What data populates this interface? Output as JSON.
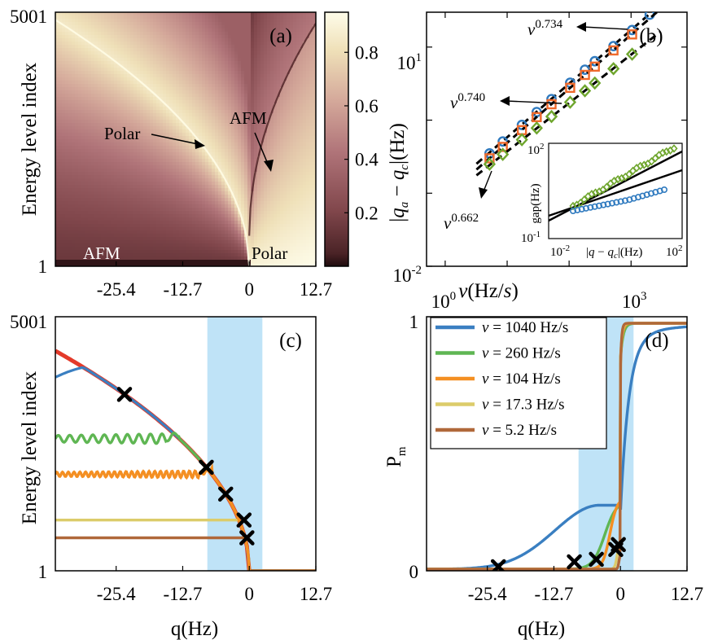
{
  "chart_data": [
    {
      "panel": "a",
      "type": "heatmap",
      "panel_label": "(a)",
      "ylabel": "Energy level index",
      "xlabel": "",
      "x_ticks": [
        "-25.4",
        "-12.7",
        "0",
        "12.7"
      ],
      "x_tick_values": [
        -25.4,
        -12.7,
        0,
        12.7
      ],
      "xlim": [
        -37,
        12.7
      ],
      "y_ticks": [
        "5001",
        "1"
      ],
      "ylim": [
        1,
        5001
      ],
      "colorbar_ticks": [
        "0.8",
        "0.6",
        "0.4",
        "0.2"
      ],
      "colorbar_tick_values": [
        0.8,
        0.6,
        0.4,
        0.2
      ],
      "colorbar_range": [
        0,
        0.95
      ],
      "annotations": [
        "Polar",
        "AFM",
        "AFM",
        "Polar"
      ],
      "colors": {
        "low": "#2a1113",
        "mid": "#a4636a",
        "high": "#fdfbe4"
      }
    },
    {
      "panel": "b",
      "type": "scatter",
      "panel_label": "(b)",
      "xscale": "log",
      "yscale": "log",
      "xlabel": "v(Hz/s)",
      "ylabel": "|q_a − q_c|(Hz)",
      "x_tick_labels": [
        "10^0",
        "10^3"
      ],
      "x_tick_values": [
        1,
        1000
      ],
      "xlim": [
        0.5,
        8000
      ],
      "y_tick_labels": [
        "10^-2",
        "10^1"
      ],
      "y_tick_values": [
        0.01,
        10
      ],
      "ylim": [
        0.01,
        30
      ],
      "exponents": [
        "0.734",
        "0.740",
        "0.662"
      ],
      "series": [
        {
          "name": "blue circles",
          "marker": "o",
          "color": "#2f7abf",
          "exponent": 0.734,
          "x": [
            5.2,
            8.5,
            17.3,
            30,
            52,
            104,
            180,
            260,
            520,
            1040,
            2000
          ],
          "y": [
            0.35,
            0.51,
            0.86,
            1.29,
            1.94,
            3.25,
            4.9,
            6.4,
            10.3,
            17.1,
            27.8
          ]
        },
        {
          "name": "orange squares",
          "marker": "s",
          "color": "#ef6a2c",
          "exponent": 0.74,
          "x": [
            5.2,
            8.5,
            17.3,
            30,
            52,
            104,
            180,
            260,
            520,
            1040
          ],
          "y": [
            0.3,
            0.43,
            0.73,
            1.1,
            1.65,
            2.77,
            4.16,
            5.4,
            9.0,
            14.9
          ]
        },
        {
          "name": "green diamonds",
          "marker": "d",
          "color": "#6fa62e",
          "exponent": 0.662,
          "x": [
            5.2,
            8.5,
            17.3,
            30,
            52,
            104,
            180,
            260,
            520,
            1040
          ],
          "y": [
            0.25,
            0.34,
            0.54,
            0.78,
            1.12,
            1.76,
            2.52,
            3.22,
            5.06,
            8.0
          ]
        }
      ],
      "inset": {
        "xlabel": "|q − q_c|(Hz)",
        "ylabel": "gap(Hz)",
        "x_tick_labels": [
          "10^-2",
          "10^2"
        ],
        "y_tick_labels": [
          "10^2",
          "10^-1"
        ]
      }
    },
    {
      "panel": "c",
      "type": "line",
      "panel_label": "(c)",
      "xlabel": "q(Hz)",
      "ylabel": "Energy level index",
      "x_ticks": [
        "-25.4",
        "-12.7",
        "0",
        "12.7"
      ],
      "x_tick_values": [
        -25.4,
        -12.7,
        0,
        12.7
      ],
      "xlim": [
        -37,
        12.7
      ],
      "y_ticks": [
        "5001",
        "1"
      ],
      "ylim": [
        1,
        5001
      ],
      "shaded_region": [
        -8,
        2.5
      ],
      "series": [
        {
          "name": "v = 1040 Hz/s",
          "color": "#3a7fc1",
          "cross_q": -23.8
        },
        {
          "name": "v = 260 Hz/s",
          "color": "#5fb653",
          "plateau": 2600,
          "cross_q": -8.2
        },
        {
          "name": "v = 104 Hz/s",
          "color": "#f48f22",
          "plateau": 1900,
          "cross_q": -4.5
        },
        {
          "name": "v = 17.3 Hz/s",
          "color": "#dccc6a",
          "plateau": 1000,
          "cross_q": -1.0
        },
        {
          "name": "v = 5.2 Hz/s",
          "color": "#b0683a",
          "plateau": 650,
          "cross_q": -0.45
        },
        {
          "name": "ground state (red)",
          "color": "#e33a2a",
          "start": 4250
        }
      ]
    },
    {
      "panel": "d",
      "type": "line",
      "panel_label": "(d)",
      "xlabel": "q(Hz)",
      "ylabel": "P_m",
      "x_ticks": [
        "-25.4",
        "-12.7",
        "0",
        "12.7"
      ],
      "x_tick_values": [
        -25.4,
        -12.7,
        0,
        12.7
      ],
      "xlim": [
        -37,
        12.7
      ],
      "y_ticks": [
        "1",
        "0"
      ],
      "ylim": [
        0,
        1
      ],
      "shaded_region": [
        -8,
        2.5
      ],
      "series": [
        {
          "name": "v = 1040 Hz/s",
          "color": "#3a7fc1",
          "peak": 0.26,
          "cross_q": -23.3,
          "cross_p": 0.01
        },
        {
          "name": "v =  260 Hz/s",
          "color": "#5fb653",
          "peak": 0.28,
          "cross_q": -8.8,
          "cross_p": 0.03
        },
        {
          "name": "v =  104 Hz/s",
          "color": "#f48f22",
          "peak": 0.29,
          "cross_q": -4.6,
          "cross_p": 0.04
        },
        {
          "name": "v = 17.3 Hz/s",
          "color": "#dccc6a",
          "peak": 0.12,
          "cross_q": -0.9,
          "cross_p": 0.08
        },
        {
          "name": "v =   5.2 Hz/s",
          "color": "#b0683a",
          "peak": 0.06,
          "cross_q": -0.4,
          "cross_p": 0.1
        }
      ]
    }
  ]
}
